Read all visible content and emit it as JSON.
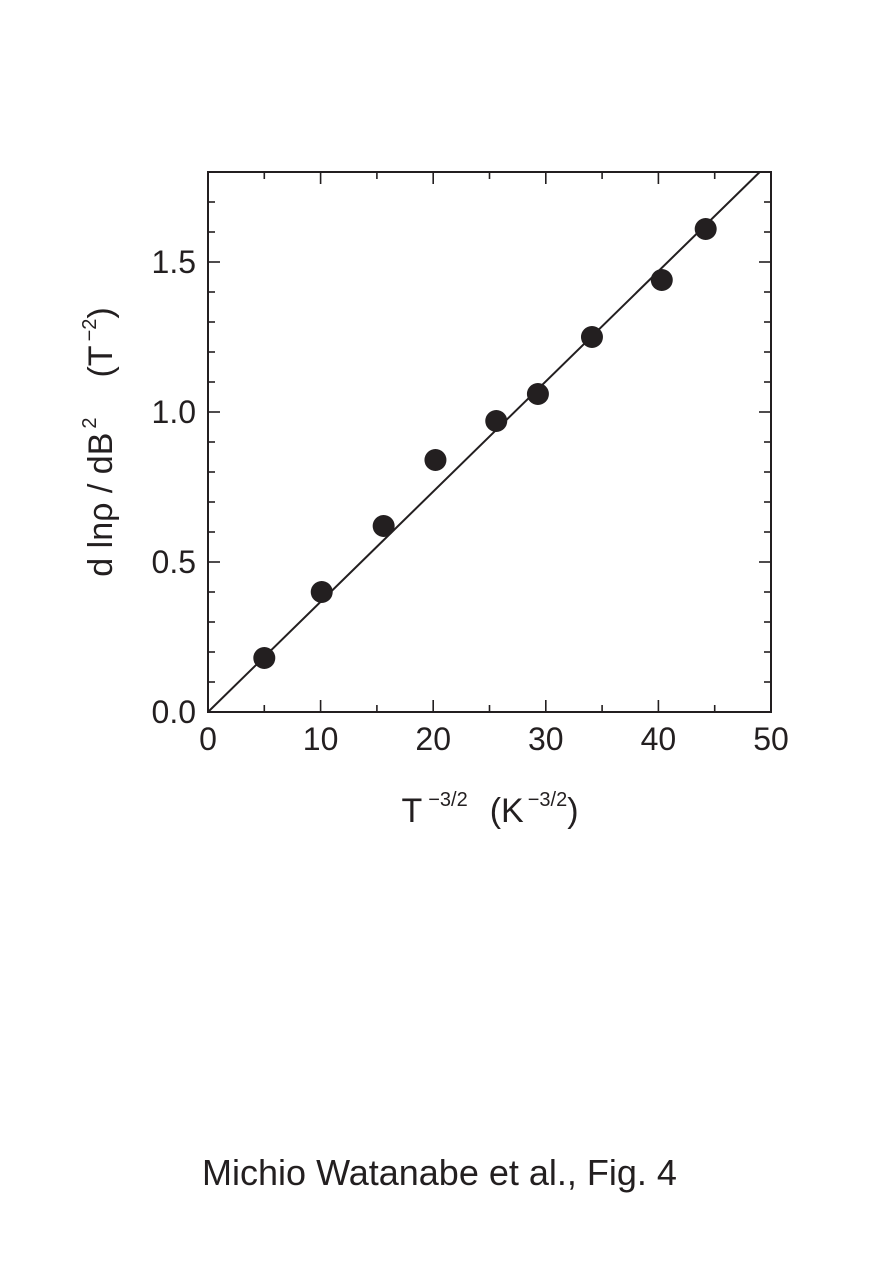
{
  "chart_data": {
    "type": "scatter",
    "xlabel": {
      "main": "T",
      "sup": "−3/2",
      "unit_open": "(K",
      "unit_sup": "−3/2",
      "unit_close": ")"
    },
    "ylabel": {
      "main": "d lnρ / dB",
      "sup": "2",
      "unit_open": "(T",
      "unit_sup": "−2",
      "unit_close": ")"
    },
    "xlim": [
      0,
      50
    ],
    "ylim": [
      0,
      1.8
    ],
    "xticks": [
      0,
      10,
      20,
      30,
      40,
      50
    ],
    "xtick_labels": [
      "0",
      "10",
      "20",
      "30",
      "40",
      "50"
    ],
    "yticks": [
      0,
      0.5,
      1.0,
      1.5
    ],
    "ytick_labels": [
      "0.0",
      "0.5",
      "1.0",
      "1.5"
    ],
    "grid": false,
    "points": [
      {
        "x": 5.0,
        "y": 0.18
      },
      {
        "x": 10.1,
        "y": 0.4
      },
      {
        "x": 15.6,
        "y": 0.62
      },
      {
        "x": 20.2,
        "y": 0.84
      },
      {
        "x": 25.6,
        "y": 0.97
      },
      {
        "x": 29.3,
        "y": 1.06
      },
      {
        "x": 34.1,
        "y": 1.25
      },
      {
        "x": 40.3,
        "y": 1.44
      },
      {
        "x": 44.2,
        "y": 1.61
      }
    ],
    "fit_line": {
      "x": [
        0,
        49
      ],
      "y": [
        0,
        1.8
      ]
    },
    "marker_color": "#231f20",
    "line_color": "#231f20"
  },
  "caption": "Michio Watanabe et al., Fig. 4"
}
